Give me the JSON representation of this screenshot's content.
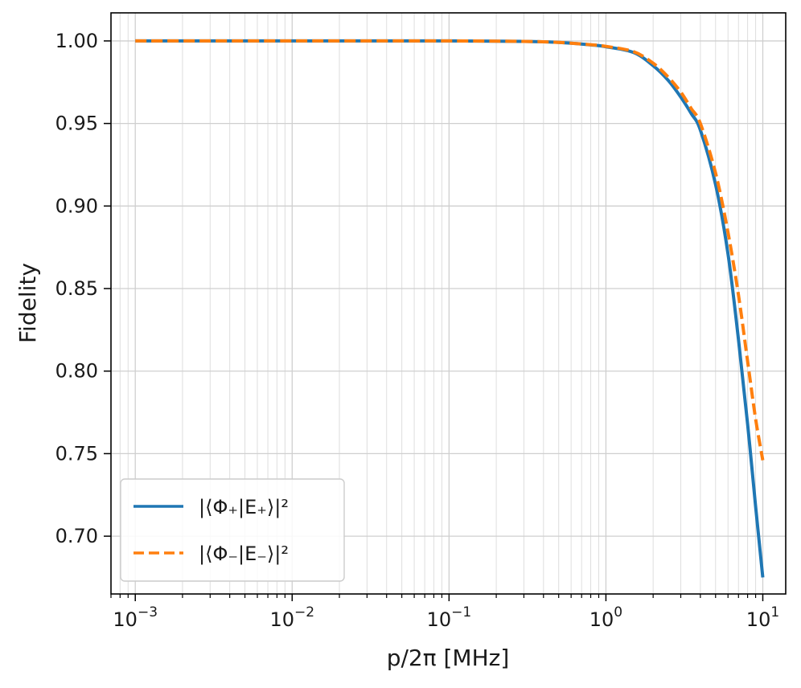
{
  "chart_data": {
    "type": "line",
    "xscale": "log",
    "xlabel": "p/2π [MHz]",
    "ylabel": "Fidelity",
    "xlim": [
      0.0007,
      14
    ],
    "ylim": [
      0.665,
      1.017
    ],
    "grid": {
      "major": true,
      "minor_x": true
    },
    "legend_position": "lower-left",
    "x_ticks": [
      {
        "value": 0.001,
        "base": "10",
        "exp": "−3"
      },
      {
        "value": 0.01,
        "base": "10",
        "exp": "−2"
      },
      {
        "value": 0.1,
        "base": "10",
        "exp": "−1"
      },
      {
        "value": 1,
        "base": "10",
        "exp": "0"
      },
      {
        "value": 10,
        "base": "10",
        "exp": "1"
      }
    ],
    "y_ticks": [
      {
        "value": 0.7,
        "label": "0.70"
      },
      {
        "value": 0.75,
        "label": "0.75"
      },
      {
        "value": 0.8,
        "label": "0.80"
      },
      {
        "value": 0.85,
        "label": "0.85"
      },
      {
        "value": 0.9,
        "label": "0.90"
      },
      {
        "value": 0.95,
        "label": "0.95"
      },
      {
        "value": 1.0,
        "label": "1.00"
      }
    ],
    "series": [
      {
        "name": "|⟨Φ₊|E₊⟩|²",
        "color": "#1f77b4",
        "style": "solid",
        "x": [
          0.001,
          0.01,
          0.1,
          0.3,
          0.5,
          0.8,
          1.0,
          1.5,
          2.0,
          2.5,
          3.0,
          3.5,
          4.0,
          5.0,
          6.0,
          7.0,
          8.0,
          9.0,
          10.0
        ],
        "y": [
          1.0,
          1.0,
          1.0,
          0.9997,
          0.9991,
          0.9976,
          0.9965,
          0.993,
          0.985,
          0.976,
          0.966,
          0.956,
          0.946,
          0.913,
          0.871,
          0.819,
          0.768,
          0.718,
          0.675
        ]
      },
      {
        "name": "|⟨Φ₋|E₋⟩|²",
        "color": "#ff7f0e",
        "style": "dashed",
        "x": [
          0.001,
          0.01,
          0.1,
          0.3,
          0.5,
          0.8,
          1.0,
          1.5,
          2.0,
          2.5,
          3.0,
          3.5,
          4.0,
          5.0,
          6.0,
          7.0,
          8.0,
          9.0,
          10.0
        ],
        "y": [
          1.0,
          1.0,
          1.0,
          0.9997,
          0.9991,
          0.9977,
          0.9967,
          0.9935,
          0.9865,
          0.978,
          0.969,
          0.959,
          0.95,
          0.92,
          0.884,
          0.846,
          0.806,
          0.771,
          0.746
        ]
      }
    ]
  }
}
